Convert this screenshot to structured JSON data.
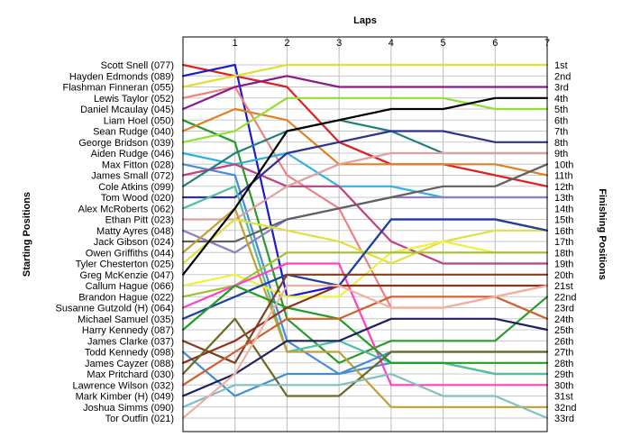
{
  "chart_data": {
    "type": "line",
    "title": "",
    "xlabel": "Laps",
    "ylabel_left": "Starting Positions",
    "ylabel_right": "Finishing Positions",
    "x": [
      0,
      1,
      2,
      3,
      4,
      5,
      6,
      7
    ],
    "xticks": [
      "1",
      "2",
      "3",
      "4",
      "5",
      "6",
      "7"
    ],
    "xlim": [
      0,
      7
    ],
    "ylim": [
      1,
      33
    ],
    "y_inverted": true,
    "grid": true,
    "finish_labels": [
      "1st",
      "2nd",
      "3rd",
      "4th",
      "5th",
      "6th",
      "7th",
      "8th",
      "9th",
      "10th",
      "11th",
      "12th",
      "13th",
      "14th",
      "15th",
      "16th",
      "17th",
      "18th",
      "19th",
      "20th",
      "21st",
      "22nd",
      "23rd",
      "24th",
      "25th",
      "26th",
      "27th",
      "28th",
      "29th",
      "30th",
      "31st",
      "32nd",
      "33rd"
    ],
    "series": [
      {
        "name": "Scott Snell (077)",
        "color": "#e02020",
        "values": [
          1,
          2,
          3,
          8,
          10,
          10,
          11,
          12
        ]
      },
      {
        "name": "Hayden Edmonds (089)",
        "color": "#1a1ad0",
        "values": [
          2,
          1,
          22,
          21,
          15,
          15,
          15,
          16
        ]
      },
      {
        "name": "Flashman Finneran (055)",
        "color": "#e0e030",
        "values": [
          3,
          2,
          1,
          1,
          1,
          1,
          1,
          1
        ]
      },
      {
        "name": "Lewis Taylor (052)",
        "color": "#f08080",
        "values": [
          4,
          3,
          11,
          14,
          23,
          23,
          22,
          21
        ]
      },
      {
        "name": "Daniel Mcaulay (045)",
        "color": "#8a1a8a",
        "values": [
          5,
          3,
          2,
          3,
          3,
          3,
          3,
          3
        ]
      },
      {
        "name": "Liam Hoel (050)",
        "color": "#2a9a2a",
        "values": [
          6,
          8,
          24,
          28,
          26,
          26,
          26,
          22
        ]
      },
      {
        "name": "Sean Rudge (040)",
        "color": "#e08020",
        "values": [
          7,
          5,
          6,
          10,
          10,
          10,
          10,
          11
        ]
      },
      {
        "name": "George Bridson (039)",
        "color": "#90e030",
        "values": [
          8,
          7,
          4,
          4,
          4,
          4,
          5,
          5
        ]
      },
      {
        "name": "Aiden Rudge (046)",
        "color": "#30b0e0",
        "values": [
          9,
          10,
          9,
          12,
          12,
          13,
          13,
          13
        ]
      },
      {
        "name": "Max Fitton (028)",
        "color": "#4a8ae0",
        "values": [
          10,
          11,
          26,
          29,
          28,
          28,
          29,
          29
        ]
      },
      {
        "name": "James Small (072)",
        "color": "#c04080",
        "values": [
          11,
          10,
          12,
          12,
          17,
          19,
          19,
          19
        ]
      },
      {
        "name": "Cole Atkins (099)",
        "color": "#208080",
        "values": [
          12,
          9,
          7,
          6,
          7,
          9,
          9,
          9
        ]
      },
      {
        "name": "Tom Wood (020)",
        "color": "#303090",
        "values": [
          13,
          13,
          9,
          8,
          7,
          7,
          8,
          8
        ]
      },
      {
        "name": "Alex McRoberts (062)",
        "color": "#50c0a0",
        "values": [
          14,
          12,
          27,
          26,
          28,
          28,
          29,
          29
        ]
      },
      {
        "name": "Ethan Pitt (023)",
        "color": "#e0a0a0",
        "values": [
          15,
          15,
          12,
          10,
          9,
          9,
          9,
          9
        ]
      },
      {
        "name": "Matty Ayres (048)",
        "color": "#9080c0",
        "values": [
          16,
          18,
          15,
          14,
          13,
          13,
          13,
          13
        ]
      },
      {
        "name": "Jack Gibson (024)",
        "color": "#606060",
        "values": [
          17,
          17,
          15,
          14,
          13,
          12,
          12,
          10
        ]
      },
      {
        "name": "Owen Griffiths (044)",
        "color": "#c0a030",
        "values": [
          18,
          14,
          27,
          27,
          32,
          32,
          32,
          32
        ]
      },
      {
        "name": "Tyler Chesterton (025)",
        "color": "#e0e040",
        "values": [
          19,
          15,
          16,
          17,
          19,
          17,
          16,
          16
        ]
      },
      {
        "name": "Greg McKenzie (047)",
        "color": "#000000",
        "values": [
          20,
          14,
          7,
          6,
          5,
          5,
          4,
          4
        ]
      },
      {
        "name": "Callum Hague (066)",
        "color": "#f0f040",
        "values": [
          21,
          20,
          22,
          22,
          18,
          17,
          18,
          18
        ]
      },
      {
        "name": "Brandon Hague (022)",
        "color": "#a0c030",
        "values": [
          22,
          21,
          18,
          18,
          18,
          18,
          18,
          18
        ]
      },
      {
        "name": "Susanne Gutzold (H) (064)",
        "color": "#ff40c0",
        "values": [
          23,
          21,
          19,
          19,
          30,
          30,
          30,
          30
        ]
      },
      {
        "name": "Michael Samuel (035)",
        "color": "#2040a0",
        "values": [
          24,
          22,
          20,
          21,
          15,
          15,
          15,
          16
        ]
      },
      {
        "name": "Harry Kennedy (087)",
        "color": "#20a020",
        "values": [
          25,
          21,
          23,
          24,
          28,
          28,
          28,
          28
        ]
      },
      {
        "name": "James Clarke (037)",
        "color": "#804020",
        "values": [
          26,
          28,
          20,
          20,
          20,
          20,
          20,
          20
        ]
      },
      {
        "name": "Todd Kennedy (098)",
        "color": "#4090d0",
        "values": [
          27,
          31,
          29,
          29,
          27,
          27,
          27,
          27
        ]
      },
      {
        "name": "James Cayzer (088)",
        "color": "#903020",
        "values": [
          28,
          26,
          23,
          21,
          21,
          21,
          21,
          21
        ]
      },
      {
        "name": "Max Pritchard (030)",
        "color": "#6a6a20",
        "values": [
          29,
          24,
          31,
          31,
          27,
          27,
          27,
          27
        ]
      },
      {
        "name": "Lawrence Wilson (032)",
        "color": "#d06030",
        "values": [
          30,
          27,
          24,
          24,
          22,
          22,
          22,
          24
        ]
      },
      {
        "name": "Mark Kimber (H) (049)",
        "color": "#202060",
        "values": [
          31,
          29,
          26,
          26,
          24,
          24,
          24,
          25
        ]
      },
      {
        "name": "Joshua Simms (090)",
        "color": "#80c0c0",
        "values": [
          32,
          30,
          30,
          30,
          29,
          31,
          31,
          33
        ]
      },
      {
        "name": "Tor Outfin (021)",
        "color": "#f0b0a0",
        "values": [
          33,
          29,
          21,
          21,
          23,
          23,
          22,
          21
        ]
      }
    ]
  }
}
